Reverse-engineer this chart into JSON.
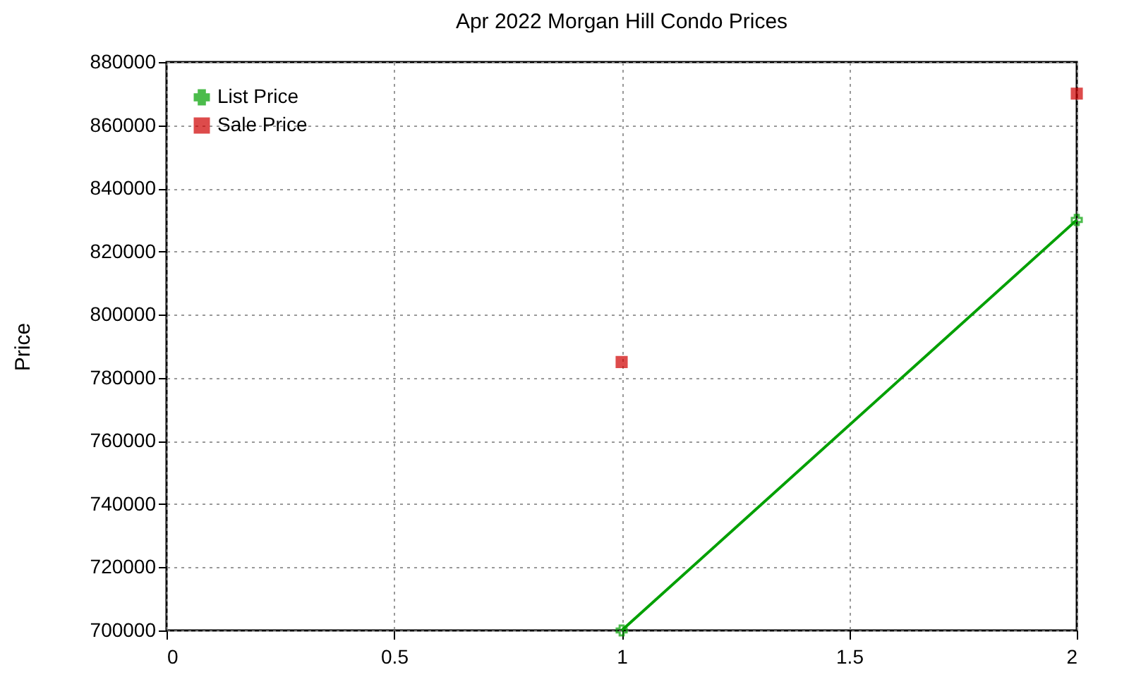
{
  "chart_data": {
    "type": "line",
    "title": "Apr 2022 Morgan Hill Condo Prices",
    "ylabel": "Price",
    "x": [
      1,
      2
    ],
    "series": [
      {
        "name": "List Price",
        "type": "line",
        "marker": "cross",
        "color": "#00a000",
        "values": [
          700000,
          830000
        ]
      },
      {
        "name": "Sale Price",
        "type": "scatter",
        "marker": "square",
        "color": "#d00000",
        "values": [
          785000,
          870000
        ]
      }
    ],
    "xlim": [
      0,
      2
    ],
    "xticks": [
      0,
      0.5,
      1,
      1.5,
      2
    ],
    "ylim": [
      700000,
      880000
    ],
    "yticks": [
      700000,
      720000,
      740000,
      760000,
      780000,
      800000,
      820000,
      840000,
      860000,
      880000
    ],
    "grid": true,
    "legend": "top left"
  }
}
